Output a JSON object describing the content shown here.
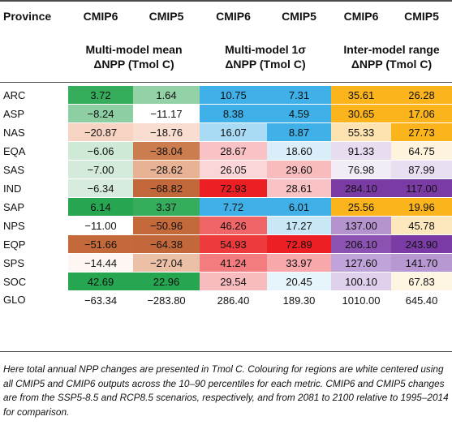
{
  "header": {
    "province_label": "Province",
    "model_cols": [
      "CMIP6",
      "CMIP5",
      "CMIP6",
      "CMIP5",
      "CMIP6",
      "CMIP5"
    ],
    "groups": [
      {
        "line1": "Multi-model mean",
        "line2": "ΔNPP (Tmol C)"
      },
      {
        "line1": "Multi-model 1σ",
        "line2": "ΔNPP (Tmol C)"
      },
      {
        "line1": "Inter-model range",
        "line2": "ΔNPP (Tmol C)"
      }
    ]
  },
  "rows": [
    {
      "province": "ARC",
      "cells": [
        {
          "v": "3.72",
          "c": "#35ad5c"
        },
        {
          "v": "1.64",
          "c": "#93d1a7"
        },
        {
          "v": "10.75",
          "c": "#3fb0e8"
        },
        {
          "v": "7.31",
          "c": "#3fb0e8"
        },
        {
          "v": "35.61",
          "c": "#fcb41c"
        },
        {
          "v": "26.28",
          "c": "#fcb41c"
        }
      ]
    },
    {
      "province": "ASP",
      "cells": [
        {
          "v": "−8.24",
          "c": "#8ecea3"
        },
        {
          "v": "−11.17",
          "c": "#ffffff"
        },
        {
          "v": "8.38",
          "c": "#3fb0e8"
        },
        {
          "v": "4.59",
          "c": "#3fb0e8"
        },
        {
          "v": "30.65",
          "c": "#fcb41c"
        },
        {
          "v": "17.06",
          "c": "#fcb41c"
        }
      ]
    },
    {
      "province": "NAS",
      "cells": [
        {
          "v": "−20.87",
          "c": "#f6d3c3"
        },
        {
          "v": "−18.76",
          "c": "#f8ddd0"
        },
        {
          "v": "16.07",
          "c": "#a9dcf4"
        },
        {
          "v": "8.87",
          "c": "#3fb0e8"
        },
        {
          "v": "55.33",
          "c": "#fde3b0"
        },
        {
          "v": "27.73",
          "c": "#fcb41c"
        }
      ]
    },
    {
      "province": "EQA",
      "cells": [
        {
          "v": "−6.06",
          "c": "#cfe9d7"
        },
        {
          "v": "−38.04",
          "c": "#cc7d50"
        },
        {
          "v": "28.67",
          "c": "#f9c3c5"
        },
        {
          "v": "18.60",
          "c": "#d9eef9"
        },
        {
          "v": "91.33",
          "c": "#e7dcf0"
        },
        {
          "v": "64.75",
          "c": "#fef3dd"
        }
      ]
    },
    {
      "province": "SAS",
      "cells": [
        {
          "v": "−7.00",
          "c": "#d4ebdb"
        },
        {
          "v": "−28.62",
          "c": "#e8b294"
        },
        {
          "v": "26.05",
          "c": "#fbd6d8"
        },
        {
          "v": "29.60",
          "c": "#f8bcbf"
        },
        {
          "v": "76.98",
          "c": "#f2ecf7"
        },
        {
          "v": "87.99",
          "c": "#e9dff2"
        }
      ]
    },
    {
      "province": "IND",
      "cells": [
        {
          "v": "−6.34",
          "c": "#d7ecde"
        },
        {
          "v": "−68.82",
          "c": "#c2683a"
        },
        {
          "v": "72.93",
          "c": "#ec2024"
        },
        {
          "v": "28.61",
          "c": "#f9c3c5"
        },
        {
          "v": "284.10",
          "c": "#7b3ba5"
        },
        {
          "v": "117.00",
          "c": "#7b3ba5"
        }
      ]
    },
    {
      "province": "SAP",
      "cells": [
        {
          "v": "6.14",
          "c": "#26a651"
        },
        {
          "v": "3.37",
          "c": "#35ad5c"
        },
        {
          "v": "7.72",
          "c": "#3fb0e8"
        },
        {
          "v": "6.01",
          "c": "#3fb0e8"
        },
        {
          "v": "25.56",
          "c": "#fcb41c"
        },
        {
          "v": "19.96",
          "c": "#fcb41c"
        }
      ]
    },
    {
      "province": "NPS",
      "cells": [
        {
          "v": "−11.00",
          "c": "#ffffff"
        },
        {
          "v": "−50.96",
          "c": "#c4693a"
        },
        {
          "v": "46.26",
          "c": "#f06668"
        },
        {
          "v": "17.27",
          "c": "#c8e8f8"
        },
        {
          "v": "137.00",
          "c": "#b593cf"
        },
        {
          "v": "45.78",
          "c": "#fde8bd"
        }
      ]
    },
    {
      "province": "EQP",
      "cells": [
        {
          "v": "−51.66",
          "c": "#c4693a"
        },
        {
          "v": "−64.38",
          "c": "#c2683a"
        },
        {
          "v": "54.93",
          "c": "#ed3b3d"
        },
        {
          "v": "72.89",
          "c": "#ec2024"
        },
        {
          "v": "206.10",
          "c": "#8c52b2"
        },
        {
          "v": "243.90",
          "c": "#7b3ba5"
        }
      ]
    },
    {
      "province": "SPS",
      "cells": [
        {
          "v": "−14.44",
          "c": "#fdf6f2"
        },
        {
          "v": "−27.04",
          "c": "#ecc0a7"
        },
        {
          "v": "41.24",
          "c": "#f27c7e"
        },
        {
          "v": "33.97",
          "c": "#f6a8ab"
        },
        {
          "v": "127.60",
          "c": "#c0a3d8"
        },
        {
          "v": "141.70",
          "c": "#b798d2"
        }
      ]
    },
    {
      "province": "SOC",
      "cells": [
        {
          "v": "42.69",
          "c": "#26a651"
        },
        {
          "v": "22.96",
          "c": "#26a651"
        },
        {
          "v": "29.54",
          "c": "#f8bcbf"
        },
        {
          "v": "20.45",
          "c": "#e6f4fb"
        },
        {
          "v": "100.10",
          "c": "#dfd0eb"
        },
        {
          "v": "67.83",
          "c": "#fef4e2"
        }
      ]
    },
    {
      "province": "GLO",
      "cells": [
        {
          "v": "−63.34",
          "c": "#ffffff"
        },
        {
          "v": "−283.80",
          "c": "#ffffff"
        },
        {
          "v": "286.40",
          "c": "#ffffff"
        },
        {
          "v": "189.30",
          "c": "#ffffff"
        },
        {
          "v": "1010.00",
          "c": "#ffffff"
        },
        {
          "v": "645.40",
          "c": "#ffffff"
        }
      ]
    }
  ],
  "footnote": "Here total annual NPP changes are presented in Tmol C. Colouring for regions are white centered using all CMIP5 and CMIP6 outputs across the 10–90 percentiles for each metric. CMIP6 and CMIP5 changes are from the SSP5-8.5 and RCP8.5 scenarios, respectively, and from 2081 to 2100 relative to 1995–2014 for comparison."
}
